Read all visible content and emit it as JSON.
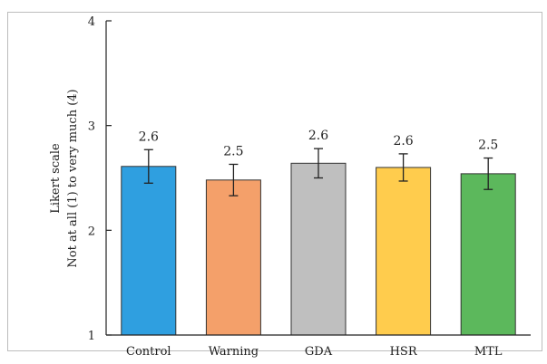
{
  "chart_data": {
    "type": "bar",
    "title": "",
    "ylabel": "Likert scale",
    "ylabel_line2": "Not at all (1) to very much (4)",
    "xlabel": "",
    "ylim": [
      1,
      4
    ],
    "yticks": [
      "1",
      "2",
      "3",
      "4"
    ],
    "grid": false,
    "categories": [
      "Control",
      "Warning",
      "GDA",
      "HSR",
      "MTL"
    ],
    "values": [
      2.61,
      2.48,
      2.64,
      2.6,
      2.54
    ],
    "error": [
      0.16,
      0.15,
      0.14,
      0.13,
      0.15
    ],
    "data_labels": [
      "2.6",
      "2.5",
      "2.6",
      "2.6",
      "2.5"
    ],
    "colors": [
      "#2f9fe0",
      "#f4a06a",
      "#bfbfbf",
      "#ffcc4d",
      "#5cb85c"
    ]
  }
}
